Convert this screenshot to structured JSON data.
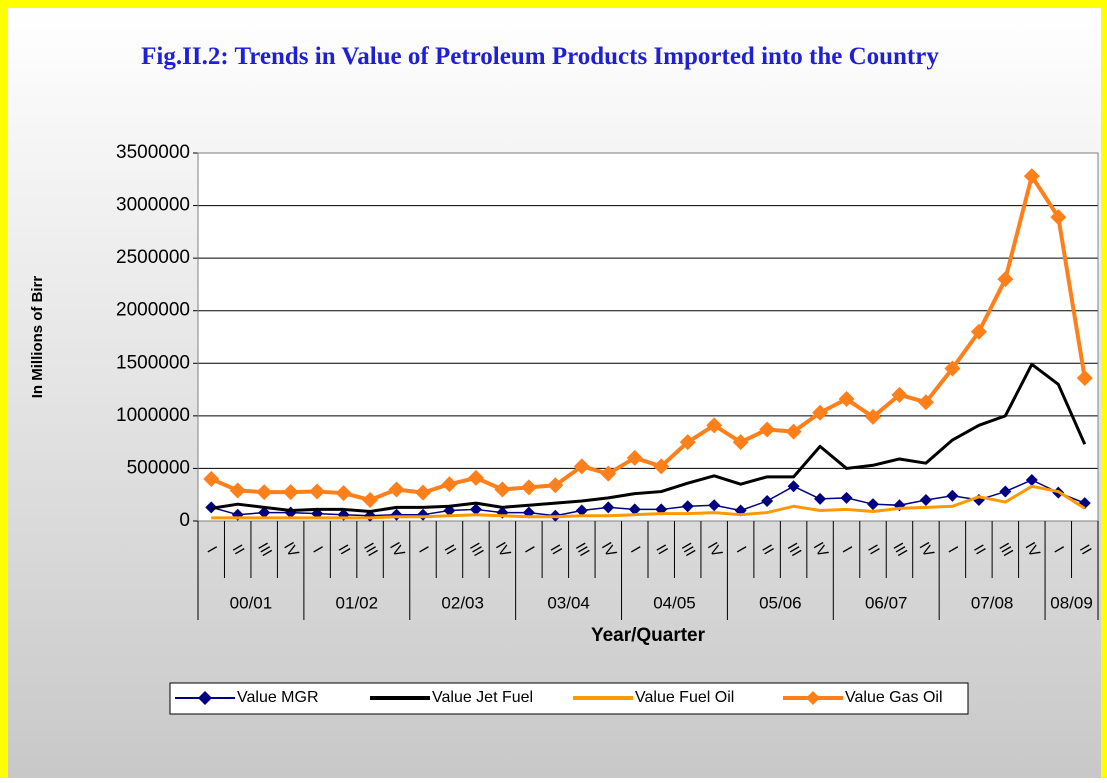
{
  "chart_data": {
    "type": "line",
    "title": "Fig.II.2: Trends in Value  of Petroleum Products Imported into the Country",
    "y_label": "In Millions of Birr",
    "x_label": "Year/Quarter",
    "categories": [
      "I",
      "II",
      "III",
      "IV",
      "I",
      "II",
      "III",
      "IV",
      "I",
      "II",
      "III",
      "IV",
      "I",
      "II",
      "III",
      "IV",
      "I",
      "II",
      "III",
      "IV",
      "I",
      "II",
      "III",
      "IV",
      "I",
      "II",
      "III",
      "IV",
      "I",
      "II",
      "III",
      "IV",
      "I",
      "II"
    ],
    "year_groups": [
      "00/01",
      "01/02",
      "02/03",
      "03/04",
      "04/05",
      "05/06",
      "06/07",
      "07/08",
      "08/09"
    ],
    "ylim": [
      0,
      3500000
    ],
    "yticks": [
      0,
      500000,
      1000000,
      1500000,
      2000000,
      2500000,
      3000000,
      3500000
    ],
    "grid": true,
    "series": [
      {
        "name": "Value MGR",
        "color": "#000080",
        "marker": "diamond",
        "values": [
          130000,
          60000,
          80000,
          80000,
          70000,
          60000,
          50000,
          60000,
          60000,
          100000,
          110000,
          80000,
          80000,
          50000,
          100000,
          130000,
          110000,
          110000,
          140000,
          150000,
          100000,
          190000,
          330000,
          210000,
          220000,
          160000,
          150000,
          200000,
          240000,
          200000,
          280000,
          390000,
          270000,
          170000
        ]
      },
      {
        "name": "Value Jet Fuel",
        "color": "#000000",
        "values": [
          120000,
          160000,
          130000,
          100000,
          110000,
          110000,
          90000,
          130000,
          130000,
          140000,
          170000,
          130000,
          150000,
          170000,
          190000,
          220000,
          260000,
          280000,
          360000,
          430000,
          350000,
          420000,
          420000,
          710000,
          500000,
          530000,
          590000,
          550000,
          770000,
          910000,
          1000000,
          1490000,
          1300000,
          730000
        ]
      },
      {
        "name": "Value Fuel Oil",
        "color": "#ff9900",
        "values": [
          30000,
          30000,
          30000,
          30000,
          30000,
          30000,
          30000,
          40000,
          40000,
          50000,
          60000,
          50000,
          40000,
          40000,
          50000,
          50000,
          60000,
          70000,
          70000,
          80000,
          60000,
          80000,
          140000,
          100000,
          110000,
          90000,
          120000,
          130000,
          140000,
          230000,
          180000,
          330000,
          280000,
          120000
        ]
      },
      {
        "name": "Value Gas Oil",
        "color": "#ff7f1a",
        "marker": "diamond",
        "values": [
          400000,
          290000,
          275000,
          275000,
          280000,
          265000,
          200000,
          300000,
          270000,
          350000,
          410000,
          300000,
          320000,
          340000,
          520000,
          450000,
          600000,
          520000,
          750000,
          910000,
          750000,
          870000,
          850000,
          1030000,
          1160000,
          990000,
          1200000,
          1130000,
          1450000,
          1800000,
          2300000,
          3280000,
          2890000,
          1360000
        ]
      }
    ]
  }
}
